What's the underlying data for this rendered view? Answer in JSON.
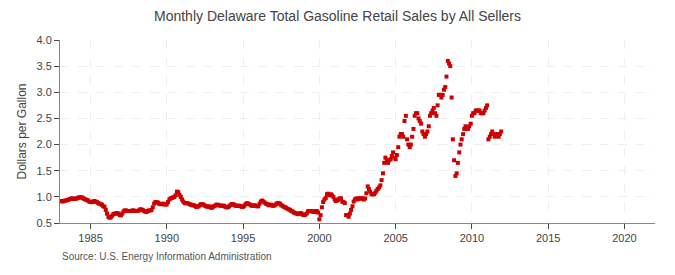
{
  "chart_data": {
    "type": "scatter",
    "title": "Monthly Delaware Total Gasoline Retail Sales by All Sellers",
    "ylabel": "Dollars per Gallon",
    "source": "Source: U.S. Energy Information Administration",
    "xlim": [
      1983,
      2022
    ],
    "ylim": [
      0.5,
      4.0
    ],
    "xticks": [
      1985,
      1990,
      1995,
      2000,
      2005,
      2010,
      2015,
      2020
    ],
    "yticks": [
      0.5,
      {
        "value": 1.0,
        "label": "1.0"
      },
      1.5,
      {
        "value": 2.0,
        "label": "2.0"
      },
      2.5,
      {
        "value": 3.0,
        "label": "3.0"
      },
      3.5,
      {
        "value": 4.0,
        "label": "4.0"
      }
    ],
    "grid": true,
    "color": "#cc0000",
    "marker": "square",
    "x": [
      1983.08,
      1983.17,
      1983.25,
      1983.33,
      1983.42,
      1983.5,
      1983.58,
      1983.67,
      1983.75,
      1983.83,
      1983.92,
      1984.0,
      1984.08,
      1984.17,
      1984.25,
      1984.33,
      1984.42,
      1984.5,
      1984.58,
      1984.67,
      1984.75,
      1984.83,
      1984.92,
      1985.0,
      1985.08,
      1985.17,
      1985.25,
      1985.33,
      1985.42,
      1985.5,
      1985.58,
      1985.67,
      1985.75,
      1985.83,
      1985.92,
      1986.0,
      1986.08,
      1986.17,
      1986.25,
      1986.33,
      1986.42,
      1986.5,
      1986.58,
      1986.67,
      1986.75,
      1986.83,
      1986.92,
      1987.0,
      1987.08,
      1987.17,
      1987.25,
      1987.33,
      1987.42,
      1987.5,
      1987.58,
      1987.67,
      1987.75,
      1987.83,
      1987.92,
      1988.0,
      1988.08,
      1988.17,
      1988.25,
      1988.33,
      1988.42,
      1988.5,
      1988.58,
      1988.67,
      1988.75,
      1988.83,
      1988.92,
      1989.0,
      1989.08,
      1989.17,
      1989.25,
      1989.33,
      1989.42,
      1989.5,
      1989.58,
      1989.67,
      1989.75,
      1989.83,
      1989.92,
      1990.0,
      1990.08,
      1990.17,
      1990.25,
      1990.33,
      1990.42,
      1990.5,
      1990.58,
      1990.67,
      1990.75,
      1990.83,
      1990.92,
      1991.0,
      1991.08,
      1991.17,
      1991.25,
      1991.33,
      1991.42,
      1991.5,
      1991.58,
      1991.67,
      1991.75,
      1991.83,
      1991.92,
      1992.0,
      1992.08,
      1992.17,
      1992.25,
      1992.33,
      1992.42,
      1992.5,
      1992.58,
      1992.67,
      1992.75,
      1992.83,
      1992.92,
      1993.0,
      1993.08,
      1993.17,
      1993.25,
      1993.33,
      1993.42,
      1993.5,
      1993.58,
      1993.67,
      1993.75,
      1993.83,
      1993.92,
      1994.0,
      1994.08,
      1994.17,
      1994.25,
      1994.33,
      1994.42,
      1994.5,
      1994.58,
      1994.67,
      1994.75,
      1994.83,
      1994.92,
      1995.0,
      1995.08,
      1995.17,
      1995.25,
      1995.33,
      1995.42,
      1995.5,
      1995.58,
      1995.67,
      1995.75,
      1995.83,
      1995.92,
      1996.0,
      1996.08,
      1996.17,
      1996.25,
      1996.33,
      1996.42,
      1996.5,
      1996.58,
      1996.67,
      1996.75,
      1996.83,
      1996.92,
      1997.0,
      1997.08,
      1997.17,
      1997.25,
      1997.33,
      1997.42,
      1997.5,
      1997.58,
      1997.67,
      1997.75,
      1997.83,
      1997.92,
      1998.0,
      1998.08,
      1998.17,
      1998.25,
      1998.33,
      1998.42,
      1998.5,
      1998.58,
      1998.67,
      1998.75,
      1998.83,
      1998.92,
      1999.0,
      1999.08,
      1999.17,
      1999.25,
      1999.33,
      1999.42,
      1999.5,
      1999.58,
      1999.67,
      1999.75,
      1999.83,
      1999.92,
      2000.0,
      2000.08,
      2000.17,
      2000.25,
      2000.33,
      2000.42,
      2000.5,
      2000.58,
      2000.67,
      2000.75,
      2000.83,
      2000.92,
      2001.0,
      2001.08,
      2001.17,
      2001.25,
      2001.33,
      2001.42,
      2001.5,
      2001.58,
      2001.67,
      2001.75,
      2001.83,
      2001.92,
      2002.0,
      2002.08,
      2002.17,
      2002.25,
      2002.33,
      2002.42,
      2002.5,
      2002.58,
      2002.67,
      2002.75,
      2002.83,
      2002.92,
      2003.0,
      2003.08,
      2003.17,
      2003.25,
      2003.33,
      2003.42,
      2003.5,
      2003.58,
      2003.67,
      2003.75,
      2003.83,
      2003.92,
      2004.0,
      2004.08,
      2004.17,
      2004.25,
      2004.33,
      2004.42,
      2004.5,
      2004.58,
      2004.67,
      2004.75,
      2004.83,
      2004.92,
      2005.0,
      2005.08,
      2005.17,
      2005.25,
      2005.33,
      2005.42,
      2005.5,
      2005.58,
      2005.67,
      2005.75,
      2005.83,
      2005.92,
      2006.0,
      2006.08,
      2006.17,
      2006.25,
      2006.33,
      2006.42,
      2006.5,
      2006.58,
      2006.67,
      2006.75,
      2006.83,
      2006.92,
      2007.0,
      2007.08,
      2007.17,
      2007.25,
      2007.33,
      2007.42,
      2007.5,
      2007.58,
      2007.67,
      2007.75,
      2007.83,
      2007.92,
      2008.0,
      2008.08,
      2008.17,
      2008.25,
      2008.33,
      2008.42,
      2008.5,
      2008.58,
      2008.67,
      2008.75,
      2008.83,
      2008.92,
      2009.0,
      2009.08,
      2009.17,
      2009.25,
      2009.33,
      2009.42,
      2009.5,
      2009.58,
      2009.67,
      2009.75,
      2009.83,
      2009.92,
      2010.0,
      2010.08,
      2010.17,
      2010.25,
      2010.33,
      2010.42,
      2010.5,
      2010.58,
      2010.67,
      2010.75,
      2010.83,
      2010.92,
      2011.0,
      2011.08,
      2011.17,
      2011.25,
      2011.33,
      2011.42,
      2011.5,
      2011.58,
      2011.67,
      2011.75,
      2011.83,
      2011.92
    ],
    "values": [
      0.92,
      0.91,
      0.92,
      0.93,
      0.93,
      0.94,
      0.95,
      0.96,
      0.97,
      0.97,
      0.96,
      0.96,
      0.97,
      0.98,
      0.99,
      0.99,
      0.99,
      0.98,
      0.96,
      0.95,
      0.94,
      0.93,
      0.91,
      0.9,
      0.9,
      0.91,
      0.92,
      0.91,
      0.9,
      0.88,
      0.87,
      0.86,
      0.85,
      0.82,
      0.81,
      0.75,
      0.68,
      0.62,
      0.6,
      0.61,
      0.64,
      0.67,
      0.68,
      0.68,
      0.69,
      0.68,
      0.65,
      0.65,
      0.68,
      0.72,
      0.74,
      0.74,
      0.73,
      0.73,
      0.73,
      0.73,
      0.74,
      0.74,
      0.73,
      0.73,
      0.73,
      0.74,
      0.76,
      0.76,
      0.75,
      0.73,
      0.72,
      0.71,
      0.73,
      0.74,
      0.74,
      0.75,
      0.8,
      0.87,
      0.9,
      0.9,
      0.89,
      0.87,
      0.86,
      0.86,
      0.87,
      0.86,
      0.85,
      0.86,
      0.9,
      0.95,
      0.97,
      0.98,
      0.99,
      1.0,
      1.03,
      1.1,
      1.09,
      1.04,
      1.0,
      0.95,
      0.91,
      0.88,
      0.88,
      0.88,
      0.87,
      0.86,
      0.85,
      0.84,
      0.84,
      0.83,
      0.81,
      0.81,
      0.82,
      0.84,
      0.86,
      0.86,
      0.85,
      0.83,
      0.82,
      0.81,
      0.82,
      0.81,
      0.79,
      0.8,
      0.82,
      0.83,
      0.85,
      0.85,
      0.84,
      0.83,
      0.83,
      0.83,
      0.83,
      0.81,
      0.8,
      0.8,
      0.82,
      0.84,
      0.86,
      0.86,
      0.85,
      0.83,
      0.83,
      0.83,
      0.83,
      0.82,
      0.81,
      0.81,
      0.83,
      0.86,
      0.88,
      0.87,
      0.86,
      0.84,
      0.83,
      0.83,
      0.84,
      0.83,
      0.82,
      0.82,
      0.87,
      0.91,
      0.93,
      0.91,
      0.89,
      0.87,
      0.86,
      0.84,
      0.85,
      0.85,
      0.83,
      0.83,
      0.84,
      0.86,
      0.88,
      0.88,
      0.87,
      0.84,
      0.83,
      0.81,
      0.8,
      0.79,
      0.77,
      0.76,
      0.75,
      0.73,
      0.72,
      0.7,
      0.69,
      0.68,
      0.67,
      0.68,
      0.69,
      0.68,
      0.66,
      0.65,
      0.66,
      0.68,
      0.72,
      0.73,
      0.73,
      0.72,
      0.72,
      0.71,
      0.73,
      0.73,
      0.7,
      0.57,
      0.65,
      0.8,
      0.9,
      0.95,
      0.98,
      1.05,
      1.06,
      1.03,
      1.05,
      1.03,
      1.0,
      0.95,
      0.92,
      0.93,
      0.95,
      0.97,
      0.97,
      0.91,
      0.9,
      0.88,
      0.65,
      0.65,
      0.62,
      0.68,
      0.75,
      0.82,
      0.91,
      0.95,
      0.97,
      0.95,
      0.97,
      0.97,
      0.97,
      0.97,
      0.95,
      0.97,
      1.07,
      1.2,
      1.15,
      1.1,
      1.05,
      1.05,
      1.05,
      1.08,
      1.12,
      1.15,
      1.18,
      1.22,
      1.32,
      1.45,
      1.65,
      1.75,
      1.7,
      1.65,
      1.7,
      1.72,
      1.78,
      1.85,
      1.75,
      1.72,
      1.8,
      1.95,
      2.15,
      2.2,
      2.2,
      2.15,
      2.45,
      2.55,
      2.1,
      2.0,
      1.95,
      2.0,
      2.15,
      2.3,
      2.55,
      2.6,
      2.6,
      2.5,
      2.45,
      2.4,
      2.25,
      2.2,
      2.15,
      2.2,
      2.25,
      2.35,
      2.55,
      2.6,
      2.65,
      2.7,
      2.6,
      2.55,
      2.75,
      2.95,
      2.95,
      2.9,
      2.95,
      3.05,
      3.1,
      3.3,
      3.6,
      3.55,
      3.5,
      2.9,
      2.1,
      1.7,
      1.4,
      1.45,
      1.65,
      1.85,
      2.0,
      2.1,
      2.2,
      2.3,
      2.35,
      2.3,
      2.3,
      2.35,
      2.4,
      2.55,
      2.6,
      2.6,
      2.65,
      2.65,
      2.65,
      2.65,
      2.6,
      2.6,
      2.6,
      2.65,
      2.7,
      2.75,
      2.1,
      2.15,
      2.2,
      2.25,
      2.2,
      2.15,
      2.2,
      2.2,
      2.15,
      2.2,
      2.25
    ]
  }
}
